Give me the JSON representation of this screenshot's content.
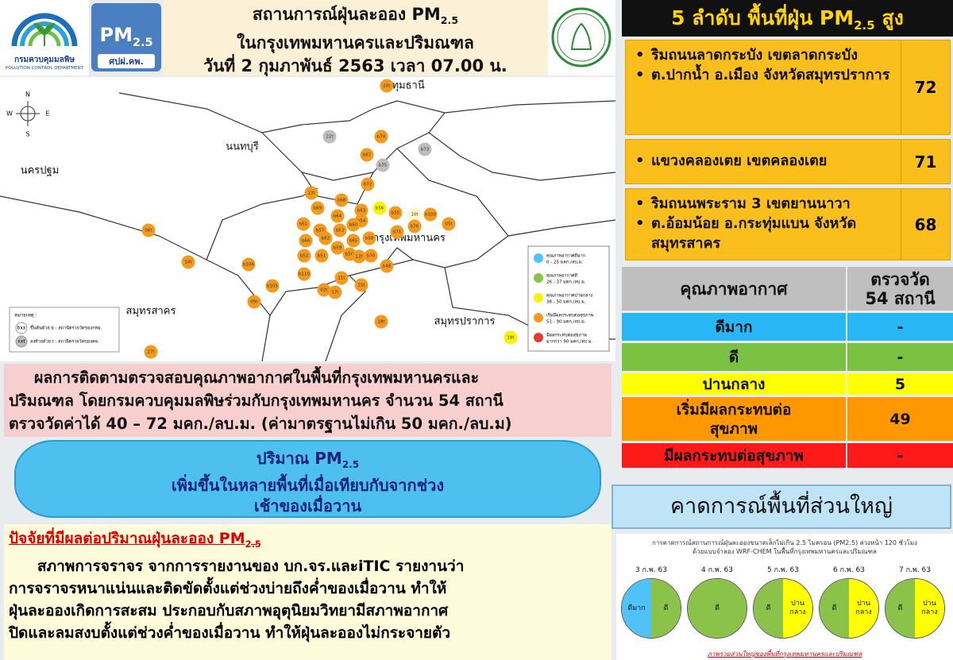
{
  "logos": {
    "pcd_name": "กรมควบคุมมลพิษ",
    "pcd_english": "POLLUTION CONTROL DEPARTMENT",
    "pm_badge": {
      "text": "PM",
      "sub": "2.5",
      "org": "ศปฝ.คพ."
    }
  },
  "header": {
    "title": {
      "text": "สถานการณ์ฝุ่นละออง PM",
      "sub": "2.5"
    },
    "area": "ในกรุงเทพมหานครและปริมณฑล",
    "date": "วันที่ 2 กุมภาพันธ์ 2563 เวลา 07.00 น."
  },
  "map": {
    "compass": [
      "N",
      "S",
      "W",
      "E"
    ],
    "places": [
      "ปทุมธานี",
      "นนทบุรี",
      "นครปฐม",
      "กรุงเทพมหานคร",
      "สมุทรสาคร",
      "สมุทรปราการ"
    ],
    "stations": [
      "20t",
      "22t",
      "b74",
      "b73",
      "b67",
      "b75",
      "b72",
      "13t",
      "b68",
      "b69",
      "b63",
      "b64",
      "b54",
      "b56",
      "b55",
      "10t",
      "b76",
      "b100",
      "b71",
      "05t",
      "b61",
      "b57",
      "b53",
      "b60",
      "b62",
      "b66",
      "b65",
      "b59",
      "b58",
      "b52",
      "b51",
      "14t",
      "b106",
      "b50",
      "12t",
      "b70",
      "b48",
      "09t",
      "b105",
      "b110",
      "11t",
      "02t",
      "17t",
      "15t",
      "18t",
      "19t",
      "27t",
      "06t"
    ],
    "legend": [
      {
        "label": "คุณภาพอากาศดีมาก",
        "range": "0 - 25 มคก./ลบ.ม."
      },
      {
        "label": "คุณภาพอากาศดี",
        "range": "26 - 37 มคก./ลบ.ม."
      },
      {
        "label": "คุณภาพอากาศปานกลาง",
        "range": "38 - 50 มคก./ลบ.ม."
      },
      {
        "label": "เริ่มมีผลกระทบต่อสุขภาพ",
        "range": "51 - 90 มคก./ลบ.ม."
      },
      {
        "label": "มีผลกระทบต่อสุขภาพ",
        "range": "มากกว่า 90 มคก./ลบ.ม."
      }
    ],
    "note": {
      "title": "หมายเหตุ :",
      "items": [
        {
          "code": "bxx",
          "text": "ขึ้นต้นด้วย b : สถานีตรวจวัดของกทม."
        },
        {
          "code": "xxt",
          "text": "ลงท้ายด้วย t : สถานีตรวจวัดของคพ."
        }
      ]
    }
  },
  "top5": {
    "title": {
      "text": "5 ลำดับ พื้นที่ฝุ่น PM",
      "sub": "2.5",
      "tail": " สูง"
    },
    "rows": [
      {
        "areas": [
          "ริมถนนลาดกระบัง เขตลาดกระบัง",
          "ต.ปากน้ำ อ.เมือง จังหวัดสมุทรปราการ"
        ],
        "value": "72"
      },
      {
        "areas": [
          "แขวงคลองเตย เขตคลองเตย"
        ],
        "value": "71"
      },
      {
        "areas": [
          "ริมถนนพระราม 3 เขตยานนาวา",
          "ต.อ้อมน้อย อ.กระทุ่มแบน จังหวัดสมุทรสาคร"
        ],
        "value": "68"
      }
    ]
  },
  "air_quality": {
    "header": {
      "quality": "คุณภาพอากาศ",
      "measured": [
        "ตรวจวัด",
        "54 สถานี"
      ]
    },
    "rows": [
      [
        "ดีมาก",
        "-"
      ],
      [
        "ดี",
        "-"
      ],
      [
        "ปานกลาง",
        "5"
      ],
      [
        "เริ่มมีผลกระทบต่อสุขภาพ",
        "49"
      ],
      [
        "มีผลกระทบต่อสุขภาพ",
        "-"
      ]
    ]
  },
  "summary": [
    "ผลการติดตามตรวจสอบคุณภาพอากาศในพื้นที่กรุงเทพมหานครและ",
    "ปริมณฑล โดยกรมควบคุมมลพิษร่วมกับกรุงเทพมหานคร จำนวน 54 สถานี",
    "ตรวจวัดค่าได้ 40 – 72 มคก./ลบ.ม. (ค่ามาตรฐานไม่เกิน 50 มคก./ลบ.ม)"
  ],
  "cloud": {
    "title": {
      "text": "ปริมาณ PM",
      "sub": "2.5"
    },
    "lines": [
      "เพิ่มขึ้นในหลายพื้นที่เมื่อเทียบกับจากช่วง",
      "เช้าของเมื่อวาน"
    ]
  },
  "factors": {
    "heading": {
      "text": "ปัจจัยที่มีผลต่อปริมาณฝุ่นละออง PM",
      "sub": "2.5"
    },
    "lines": [
      "สภาพการจราจร จากการรายงานของ บก.จร.และiTIC รายงานว่า",
      "การจราจรหนาแน่นและติดขัดตั้งแต่ช่วงบ่ายถึงค่ำของเมื่อวาน ทำให้",
      "ฝุ่นละอองเกิดการสะสม ประกอบกับสภาพอุตุนิยมวิทยามีสภาพอากาศ",
      "ปิดและลมสงบตั้งแต่ช่วงค่ำของเมื่อวาน ทำให้ฝุ่นละอองไม่กระจายตัว"
    ]
  },
  "forecast": {
    "title": "คาดการณ์พื้นที่ส่วนใหญ่",
    "caption": [
      "การคาดการณ์สถานการณ์ฝุ่นละอองขนาดเล็กไม่เกิน 2.5 ไมครอน (PM2.5) ล่วงหน้า 120 ชั่วโมง",
      "ด้วยแบบจำลอง WRF-CHEM ในพื้นที่กรุงเทพมหานครและปริมณฑล"
    ],
    "days": [
      {
        "date": "3 ก.พ. 63",
        "levels": [
          [
            "ดีมาก"
          ],
          [
            "ดี"
          ]
        ]
      },
      {
        "date": "4 ก.พ. 63",
        "levels": [
          [
            "ดี"
          ]
        ]
      },
      {
        "date": "5 ก.พ. 63",
        "levels": [
          [
            "ดี"
          ],
          [
            "ปาน",
            "กลาง"
          ]
        ]
      },
      {
        "date": "6 ก.พ. 63",
        "levels": [
          [
            "ดี"
          ],
          [
            "ปาน",
            "กลาง"
          ]
        ]
      },
      {
        "date": "7 ก.พ. 63",
        "levels": [
          [
            "ดี"
          ],
          [
            "ปาน",
            "กลาง"
          ]
        ]
      }
    ],
    "footnote": "ภาพรวมส่วนใหญ่ของพื้นที่กรุงเทพมหานครและปริมณฑล"
  }
}
